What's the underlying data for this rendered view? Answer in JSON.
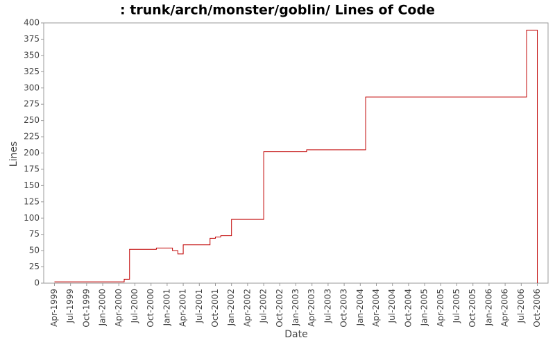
{
  "chart_data": {
    "type": "line",
    "step": true,
    "title": ": trunk/arch/monster/goblin/ Lines of Code",
    "x_label": "Date",
    "y_label": "Lines",
    "x": [
      "1999-04",
      "2000-05",
      "2000-06",
      "2000-11",
      "2001-02",
      "2001-03",
      "2001-04",
      "2001-09",
      "2001-10",
      "2001-11",
      "2002-01",
      "2002-07",
      "2003-03",
      "2004-02",
      "2006-08",
      "2006-10"
    ],
    "series": [
      {
        "name": "Lines",
        "color": "#c00000",
        "values": [
          2,
          6,
          52,
          54,
          50,
          45,
          59,
          69,
          71,
          73,
          98,
          202,
          205,
          286,
          389,
          0
        ]
      }
    ],
    "xlim": [
      "1999-02",
      "2006-12"
    ],
    "xticks": [
      {
        "value": "1999-04",
        "label": "Apr-1999"
      },
      {
        "value": "1999-07",
        "label": "Jul-1999"
      },
      {
        "value": "1999-10",
        "label": "Oct-1999"
      },
      {
        "value": "2000-01",
        "label": "Jan-2000"
      },
      {
        "value": "2000-04",
        "label": "Apr-2000"
      },
      {
        "value": "2000-07",
        "label": "Jul-2000"
      },
      {
        "value": "2000-10",
        "label": "Oct-2000"
      },
      {
        "value": "2001-01",
        "label": "Jan-2001"
      },
      {
        "value": "2001-04",
        "label": "Apr-2001"
      },
      {
        "value": "2001-07",
        "label": "Jul-2001"
      },
      {
        "value": "2001-10",
        "label": "Oct-2001"
      },
      {
        "value": "2002-01",
        "label": "Jan-2002"
      },
      {
        "value": "2002-04",
        "label": "Apr-2002"
      },
      {
        "value": "2002-07",
        "label": "Jul-2002"
      },
      {
        "value": "2002-10",
        "label": "Oct-2002"
      },
      {
        "value": "2003-01",
        "label": "Jan-2003"
      },
      {
        "value": "2003-04",
        "label": "Apr-2003"
      },
      {
        "value": "2003-07",
        "label": "Jul-2003"
      },
      {
        "value": "2003-10",
        "label": "Oct-2003"
      },
      {
        "value": "2004-01",
        "label": "Jan-2004"
      },
      {
        "value": "2004-04",
        "label": "Apr-2004"
      },
      {
        "value": "2004-07",
        "label": "Jul-2004"
      },
      {
        "value": "2004-10",
        "label": "Oct-2004"
      },
      {
        "value": "2005-01",
        "label": "Jan-2005"
      },
      {
        "value": "2005-04",
        "label": "Apr-2005"
      },
      {
        "value": "2005-07",
        "label": "Jul-2005"
      },
      {
        "value": "2005-10",
        "label": "Oct-2005"
      },
      {
        "value": "2006-01",
        "label": "Jan-2006"
      },
      {
        "value": "2006-04",
        "label": "Apr-2006"
      },
      {
        "value": "2006-07",
        "label": "Jul-2006"
      },
      {
        "value": "2006-10",
        "label": "Oct-2006"
      }
    ],
    "ylim": [
      0,
      400
    ],
    "yticks": [
      0,
      25,
      50,
      75,
      100,
      125,
      150,
      175,
      200,
      225,
      250,
      275,
      300,
      325,
      350,
      375,
      400
    ],
    "grid": false
  }
}
